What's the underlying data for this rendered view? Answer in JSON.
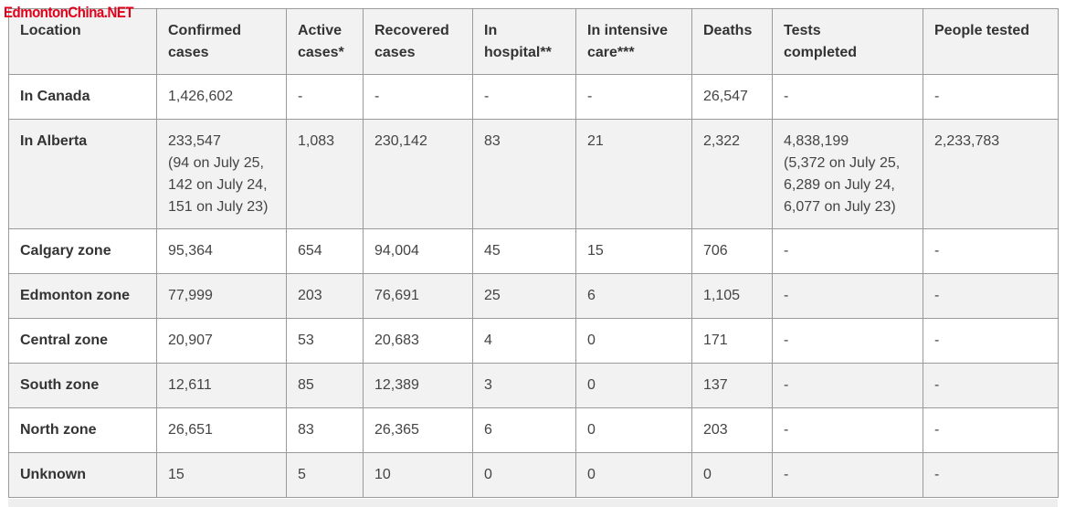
{
  "watermark": "EdmontonChina.NET",
  "columns": [
    [
      "Location"
    ],
    [
      "Confirmed",
      "cases"
    ],
    [
      "Active",
      "cases*"
    ],
    [
      "Recovered",
      "cases"
    ],
    [
      "In",
      "hospital**"
    ],
    [
      "In intensive",
      "care***"
    ],
    [
      "Deaths"
    ],
    [
      "Tests",
      "completed"
    ],
    [
      "People tested"
    ]
  ],
  "rows": [
    {
      "location": "In Canada",
      "cells": [
        [
          "1,426,602"
        ],
        [
          "-"
        ],
        [
          "-"
        ],
        [
          "-"
        ],
        [
          "-"
        ],
        [
          "26,547"
        ],
        [
          "-"
        ],
        [
          "-"
        ]
      ]
    },
    {
      "location": "In Alberta",
      "cells": [
        [
          "233,547",
          "(94 on July 25,",
          "142 on July 24,",
          "151 on July 23)"
        ],
        [
          "1,083"
        ],
        [
          "230,142"
        ],
        [
          "83"
        ],
        [
          "21"
        ],
        [
          "2,322"
        ],
        [
          "4,838,199",
          "(5,372 on July 25,",
          "6,289 on July 24,",
          "6,077 on July 23)"
        ],
        [
          "2,233,783"
        ]
      ]
    },
    {
      "location": "Calgary zone",
      "cells": [
        [
          "95,364"
        ],
        [
          "654"
        ],
        [
          "94,004"
        ],
        [
          "45"
        ],
        [
          "15"
        ],
        [
          "706"
        ],
        [
          "-"
        ],
        [
          "-"
        ]
      ]
    },
    {
      "location": "Edmonton zone",
      "cells": [
        [
          "77,999"
        ],
        [
          "203"
        ],
        [
          "76,691"
        ],
        [
          "25"
        ],
        [
          "6"
        ],
        [
          "1,105"
        ],
        [
          "-"
        ],
        [
          "-"
        ]
      ]
    },
    {
      "location": "Central zone",
      "cells": [
        [
          "20,907"
        ],
        [
          "53"
        ],
        [
          "20,683"
        ],
        [
          "4"
        ],
        [
          "0"
        ],
        [
          "171"
        ],
        [
          "-"
        ],
        [
          "-"
        ]
      ]
    },
    {
      "location": "South zone",
      "cells": [
        [
          "12,611"
        ],
        [
          "85"
        ],
        [
          "12,389"
        ],
        [
          "3"
        ],
        [
          "0"
        ],
        [
          "137"
        ],
        [
          "-"
        ],
        [
          "-"
        ]
      ]
    },
    {
      "location": "North zone",
      "cells": [
        [
          "26,651"
        ],
        [
          "83"
        ],
        [
          "26,365"
        ],
        [
          "6"
        ],
        [
          "0"
        ],
        [
          "203"
        ],
        [
          "-"
        ],
        [
          "-"
        ]
      ]
    },
    {
      "location": "Unknown",
      "cells": [
        [
          "15"
        ],
        [
          "5"
        ],
        [
          "10"
        ],
        [
          "0"
        ],
        [
          "0"
        ],
        [
          "0"
        ],
        [
          "-"
        ],
        [
          "-"
        ]
      ]
    }
  ]
}
